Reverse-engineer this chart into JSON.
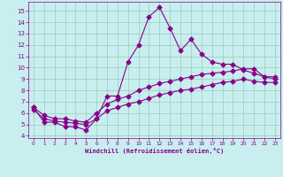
{
  "xlabel": "Windchill (Refroidissement éolien,°C)",
  "bg_color": "#c8eef0",
  "line_color": "#880088",
  "grid_color": "#99ccbb",
  "xlim": [
    -0.5,
    23.5
  ],
  "ylim": [
    3.8,
    15.8
  ],
  "xticks": [
    0,
    1,
    2,
    3,
    4,
    5,
    6,
    7,
    8,
    9,
    10,
    11,
    12,
    13,
    14,
    15,
    16,
    17,
    18,
    19,
    20,
    21,
    22,
    23
  ],
  "yticks": [
    4,
    5,
    6,
    7,
    8,
    9,
    10,
    11,
    12,
    13,
    14,
    15
  ],
  "line1_x": [
    0,
    1,
    2,
    3,
    4,
    5,
    6,
    7,
    8,
    9,
    10,
    11,
    12,
    13,
    14,
    15,
    16,
    17,
    18,
    19,
    20,
    21,
    22,
    23
  ],
  "line1_y": [
    6.5,
    5.2,
    5.2,
    4.8,
    4.8,
    4.5,
    5.5,
    7.5,
    7.5,
    10.5,
    12.0,
    14.5,
    15.3,
    13.5,
    11.5,
    12.5,
    11.2,
    10.5,
    10.3,
    10.3,
    9.8,
    9.5,
    9.2,
    9.2
  ],
  "line2_x": [
    0,
    1,
    2,
    3,
    4,
    5,
    6,
    7,
    8,
    9,
    10,
    11,
    12,
    13,
    14,
    15,
    16,
    17,
    18,
    19,
    20,
    21,
    22,
    23
  ],
  "line2_y": [
    6.5,
    5.8,
    5.5,
    5.5,
    5.3,
    5.2,
    6.0,
    6.8,
    7.2,
    7.5,
    8.0,
    8.3,
    8.6,
    8.8,
    9.0,
    9.2,
    9.4,
    9.5,
    9.6,
    9.7,
    9.9,
    9.9,
    9.2,
    9.0
  ],
  "line3_x": [
    0,
    1,
    2,
    3,
    4,
    5,
    6,
    7,
    8,
    9,
    10,
    11,
    12,
    13,
    14,
    15,
    16,
    17,
    18,
    19,
    20,
    21,
    22,
    23
  ],
  "line3_y": [
    6.3,
    5.5,
    5.3,
    5.2,
    5.1,
    5.0,
    5.5,
    6.2,
    6.5,
    6.8,
    7.0,
    7.3,
    7.6,
    7.8,
    8.0,
    8.1,
    8.3,
    8.5,
    8.7,
    8.8,
    9.0,
    8.8,
    8.7,
    8.7
  ]
}
